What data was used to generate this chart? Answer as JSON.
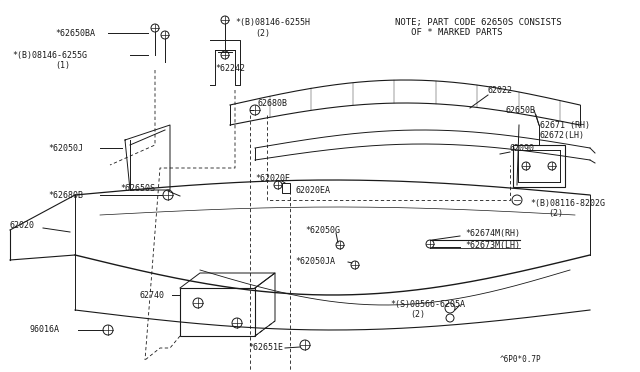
{
  "bg_color": "#f0f0f0",
  "line_color": "#1a1a1a",
  "note_line1": "NOTE; PART CODE 62650S CONSISTS",
  "note_line2": "   OF * MARKED PARTS",
  "footer": "^6P0*0.7P",
  "font_size": 6.0
}
